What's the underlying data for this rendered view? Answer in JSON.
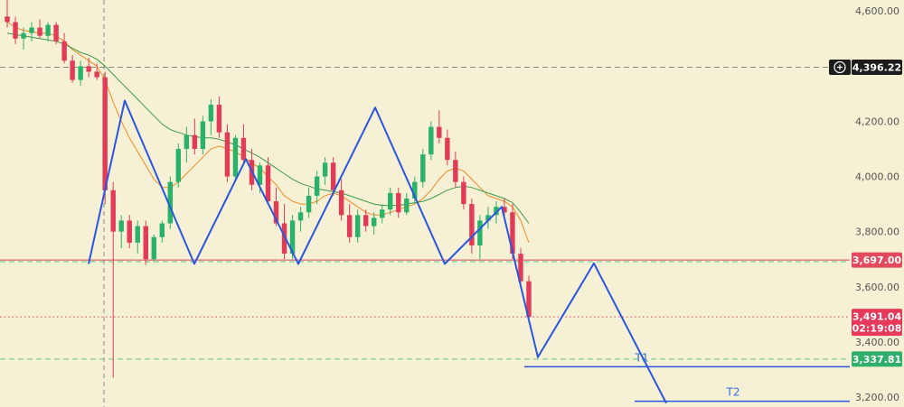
{
  "chart_data": {
    "type": "candlestick",
    "y_axis": {
      "ticks": [
        "4,600.00",
        "4,200.00",
        "4,000.00",
        "3,800.00",
        "3,600.00",
        "3,400.00",
        "3,200.00"
      ],
      "tick_values": [
        4600,
        4200,
        4000,
        3800,
        3600,
        3400,
        3200
      ],
      "range": [
        3164,
        4640
      ],
      "position": "right"
    },
    "price_tags": [
      {
        "label": "4,396.22",
        "value": 4396.22,
        "color": "#1c1c1c",
        "with_crosshair_icon": true
      },
      {
        "label": "3,697.00",
        "value": 3697.0,
        "color": "#e34a5d"
      },
      {
        "label": "3,491.04",
        "sublabel": "02:19:08",
        "value": 3491.04,
        "color": "#e8395a"
      },
      {
        "label": "3,337.81",
        "value": 3337.81,
        "color": "#2fae6c"
      }
    ],
    "horizontal_levels": [
      {
        "value": 4396.22,
        "style": "dashed",
        "color": "#8a8a8a"
      },
      {
        "value": 3697.0,
        "style": "solid",
        "color": "#d9455a"
      },
      {
        "value": 3691.0,
        "style": "dashed",
        "color": "#5fc58a"
      },
      {
        "value": 3491.04,
        "style": "dotted",
        "color": "#e8395a"
      },
      {
        "value": 3337.81,
        "style": "dashed",
        "color": "#5fc58a"
      }
    ],
    "targets": [
      {
        "label": "T1",
        "value": 3310
      },
      {
        "label": "T2",
        "value": 3185
      }
    ],
    "pattern_path": {
      "color": "#2a55e0",
      "points": [
        [
          98,
          3683
        ],
        [
          138,
          4275
        ],
        [
          215,
          3683
        ],
        [
          272,
          4063
        ],
        [
          330,
          3683
        ],
        [
          415,
          4250
        ],
        [
          492,
          3683
        ],
        [
          555,
          3890
        ],
        [
          585,
          3480
        ],
        [
          595,
          3345
        ],
        [
          657,
          3685
        ],
        [
          737,
          3178
        ]
      ]
    },
    "crosshair": {
      "x_index": 115,
      "value": 4396.22
    },
    "candles": [
      {
        "o": 4580,
        "h": 4640,
        "l": 4540,
        "c": 4560
      },
      {
        "o": 4560,
        "h": 4580,
        "l": 4480,
        "c": 4500
      },
      {
        "o": 4500,
        "h": 4540,
        "l": 4460,
        "c": 4520
      },
      {
        "o": 4520,
        "h": 4560,
        "l": 4490,
        "c": 4540
      },
      {
        "o": 4540,
        "h": 4570,
        "l": 4500,
        "c": 4510
      },
      {
        "o": 4510,
        "h": 4560,
        "l": 4490,
        "c": 4550
      },
      {
        "o": 4550,
        "h": 4560,
        "l": 4480,
        "c": 4490
      },
      {
        "o": 4490,
        "h": 4520,
        "l": 4410,
        "c": 4420
      },
      {
        "o": 4420,
        "h": 4440,
        "l": 4340,
        "c": 4350
      },
      {
        "o": 4350,
        "h": 4420,
        "l": 4330,
        "c": 4400
      },
      {
        "o": 4400,
        "h": 4430,
        "l": 4360,
        "c": 4380
      },
      {
        "o": 4380,
        "h": 4410,
        "l": 4350,
        "c": 4360
      },
      {
        "o": 4360,
        "h": 4380,
        "l": 3900,
        "c": 3950
      },
      {
        "o": 3950,
        "h": 3980,
        "l": 3270,
        "c": 3800
      },
      {
        "o": 3800,
        "h": 3860,
        "l": 3740,
        "c": 3840
      },
      {
        "o": 3840,
        "h": 3860,
        "l": 3740,
        "c": 3760
      },
      {
        "o": 3760,
        "h": 3840,
        "l": 3720,
        "c": 3820
      },
      {
        "o": 3820,
        "h": 3840,
        "l": 3680,
        "c": 3700
      },
      {
        "o": 3700,
        "h": 3790,
        "l": 3690,
        "c": 3780
      },
      {
        "o": 3780,
        "h": 3840,
        "l": 3760,
        "c": 3830
      },
      {
        "o": 3830,
        "h": 4000,
        "l": 3810,
        "c": 3980
      },
      {
        "o": 3980,
        "h": 4120,
        "l": 3960,
        "c": 4100
      },
      {
        "o": 4100,
        "h": 4180,
        "l": 4050,
        "c": 4150
      },
      {
        "o": 4150,
        "h": 4210,
        "l": 4080,
        "c": 4100
      },
      {
        "o": 4100,
        "h": 4220,
        "l": 4080,
        "c": 4200
      },
      {
        "o": 4200,
        "h": 4280,
        "l": 4150,
        "c": 4260
      },
      {
        "o": 4260,
        "h": 4290,
        "l": 4140,
        "c": 4160
      },
      {
        "o": 4160,
        "h": 4190,
        "l": 3980,
        "c": 4000
      },
      {
        "o": 4000,
        "h": 4150,
        "l": 3990,
        "c": 4140
      },
      {
        "o": 4140,
        "h": 4190,
        "l": 4050,
        "c": 4060
      },
      {
        "o": 4060,
        "h": 4100,
        "l": 3950,
        "c": 3970
      },
      {
        "o": 3970,
        "h": 4050,
        "l": 3940,
        "c": 4040
      },
      {
        "o": 4040,
        "h": 4070,
        "l": 3900,
        "c": 3910
      },
      {
        "o": 3910,
        "h": 3960,
        "l": 3820,
        "c": 3830
      },
      {
        "o": 3830,
        "h": 3900,
        "l": 3700,
        "c": 3720
      },
      {
        "o": 3720,
        "h": 3860,
        "l": 3700,
        "c": 3840
      },
      {
        "o": 3840,
        "h": 3890,
        "l": 3800,
        "c": 3870
      },
      {
        "o": 3870,
        "h": 3960,
        "l": 3850,
        "c": 3930
      },
      {
        "o": 3930,
        "h": 4020,
        "l": 3900,
        "c": 4000
      },
      {
        "o": 4000,
        "h": 4070,
        "l": 3970,
        "c": 4050
      },
      {
        "o": 4050,
        "h": 4070,
        "l": 3930,
        "c": 3950
      },
      {
        "o": 3950,
        "h": 3990,
        "l": 3840,
        "c": 3860
      },
      {
        "o": 3860,
        "h": 3900,
        "l": 3760,
        "c": 3780
      },
      {
        "o": 3780,
        "h": 3880,
        "l": 3760,
        "c": 3860
      },
      {
        "o": 3860,
        "h": 3880,
        "l": 3800,
        "c": 3820
      },
      {
        "o": 3820,
        "h": 3870,
        "l": 3790,
        "c": 3850
      },
      {
        "o": 3850,
        "h": 3900,
        "l": 3830,
        "c": 3880
      },
      {
        "o": 3880,
        "h": 3960,
        "l": 3860,
        "c": 3940
      },
      {
        "o": 3940,
        "h": 3960,
        "l": 3850,
        "c": 3870
      },
      {
        "o": 3870,
        "h": 3940,
        "l": 3860,
        "c": 3920
      },
      {
        "o": 3920,
        "h": 4000,
        "l": 3900,
        "c": 3980
      },
      {
        "o": 3980,
        "h": 4100,
        "l": 3960,
        "c": 4080
      },
      {
        "o": 4080,
        "h": 4200,
        "l": 4060,
        "c": 4180
      },
      {
        "o": 4180,
        "h": 4240,
        "l": 4120,
        "c": 4140
      },
      {
        "o": 4140,
        "h": 4170,
        "l": 4040,
        "c": 4060
      },
      {
        "o": 4060,
        "h": 4090,
        "l": 3960,
        "c": 3980
      },
      {
        "o": 3980,
        "h": 4000,
        "l": 3880,
        "c": 3900
      },
      {
        "o": 3900,
        "h": 3920,
        "l": 3720,
        "c": 3750
      },
      {
        "o": 3750,
        "h": 3860,
        "l": 3700,
        "c": 3840
      },
      {
        "o": 3840,
        "h": 3890,
        "l": 3810,
        "c": 3860
      },
      {
        "o": 3860,
        "h": 3910,
        "l": 3830,
        "c": 3890
      },
      {
        "o": 3890,
        "h": 3920,
        "l": 3850,
        "c": 3870
      },
      {
        "o": 3870,
        "h": 3900,
        "l": 3700,
        "c": 3720
      },
      {
        "o": 3720,
        "h": 3740,
        "l": 3600,
        "c": 3620
      },
      {
        "o": 3620,
        "h": 3640,
        "l": 3470,
        "c": 3491
      }
    ],
    "moving_averages": [
      {
        "name": "",
        "color": "#f08a24",
        "values": [
          4560,
          4540,
          4530,
          4525,
          4520,
          4520,
          4510,
          4490,
          4460,
          4440,
          4420,
          4400,
          4350,
          4270,
          4200,
          4140,
          4090,
          4040,
          3990,
          3960,
          3960,
          3980,
          4010,
          4040,
          4070,
          4100,
          4110,
          4100,
          4090,
          4070,
          4050,
          4030,
          4000,
          3970,
          3930,
          3910,
          3900,
          3900,
          3910,
          3930,
          3940,
          3930,
          3910,
          3890,
          3870,
          3860,
          3860,
          3870,
          3880,
          3890,
          3900,
          3920,
          3950,
          3990,
          4020,
          4030,
          4020,
          3990,
          3960,
          3930,
          3920,
          3910,
          3890,
          3840,
          3760
        ]
      },
      {
        "name": "",
        "color": "#3b9a4a",
        "values": [
          4520,
          4515,
          4510,
          4505,
          4500,
          4495,
          4490,
          4480,
          4465,
          4450,
          4440,
          4425,
          4400,
          4370,
          4340,
          4310,
          4280,
          4250,
          4220,
          4190,
          4170,
          4160,
          4150,
          4145,
          4140,
          4140,
          4135,
          4125,
          4115,
          4100,
          4085,
          4070,
          4050,
          4030,
          4010,
          3990,
          3975,
          3965,
          3955,
          3950,
          3945,
          3940,
          3930,
          3920,
          3910,
          3900,
          3895,
          3895,
          3895,
          3900,
          3905,
          3910,
          3920,
          3935,
          3950,
          3960,
          3965,
          3960,
          3950,
          3940,
          3930,
          3920,
          3905,
          3870,
          3830
        ]
      }
    ],
    "colors": {
      "up": "#2bb26a",
      "down": "#e23b57",
      "background": "#f6f0d4"
    }
  }
}
